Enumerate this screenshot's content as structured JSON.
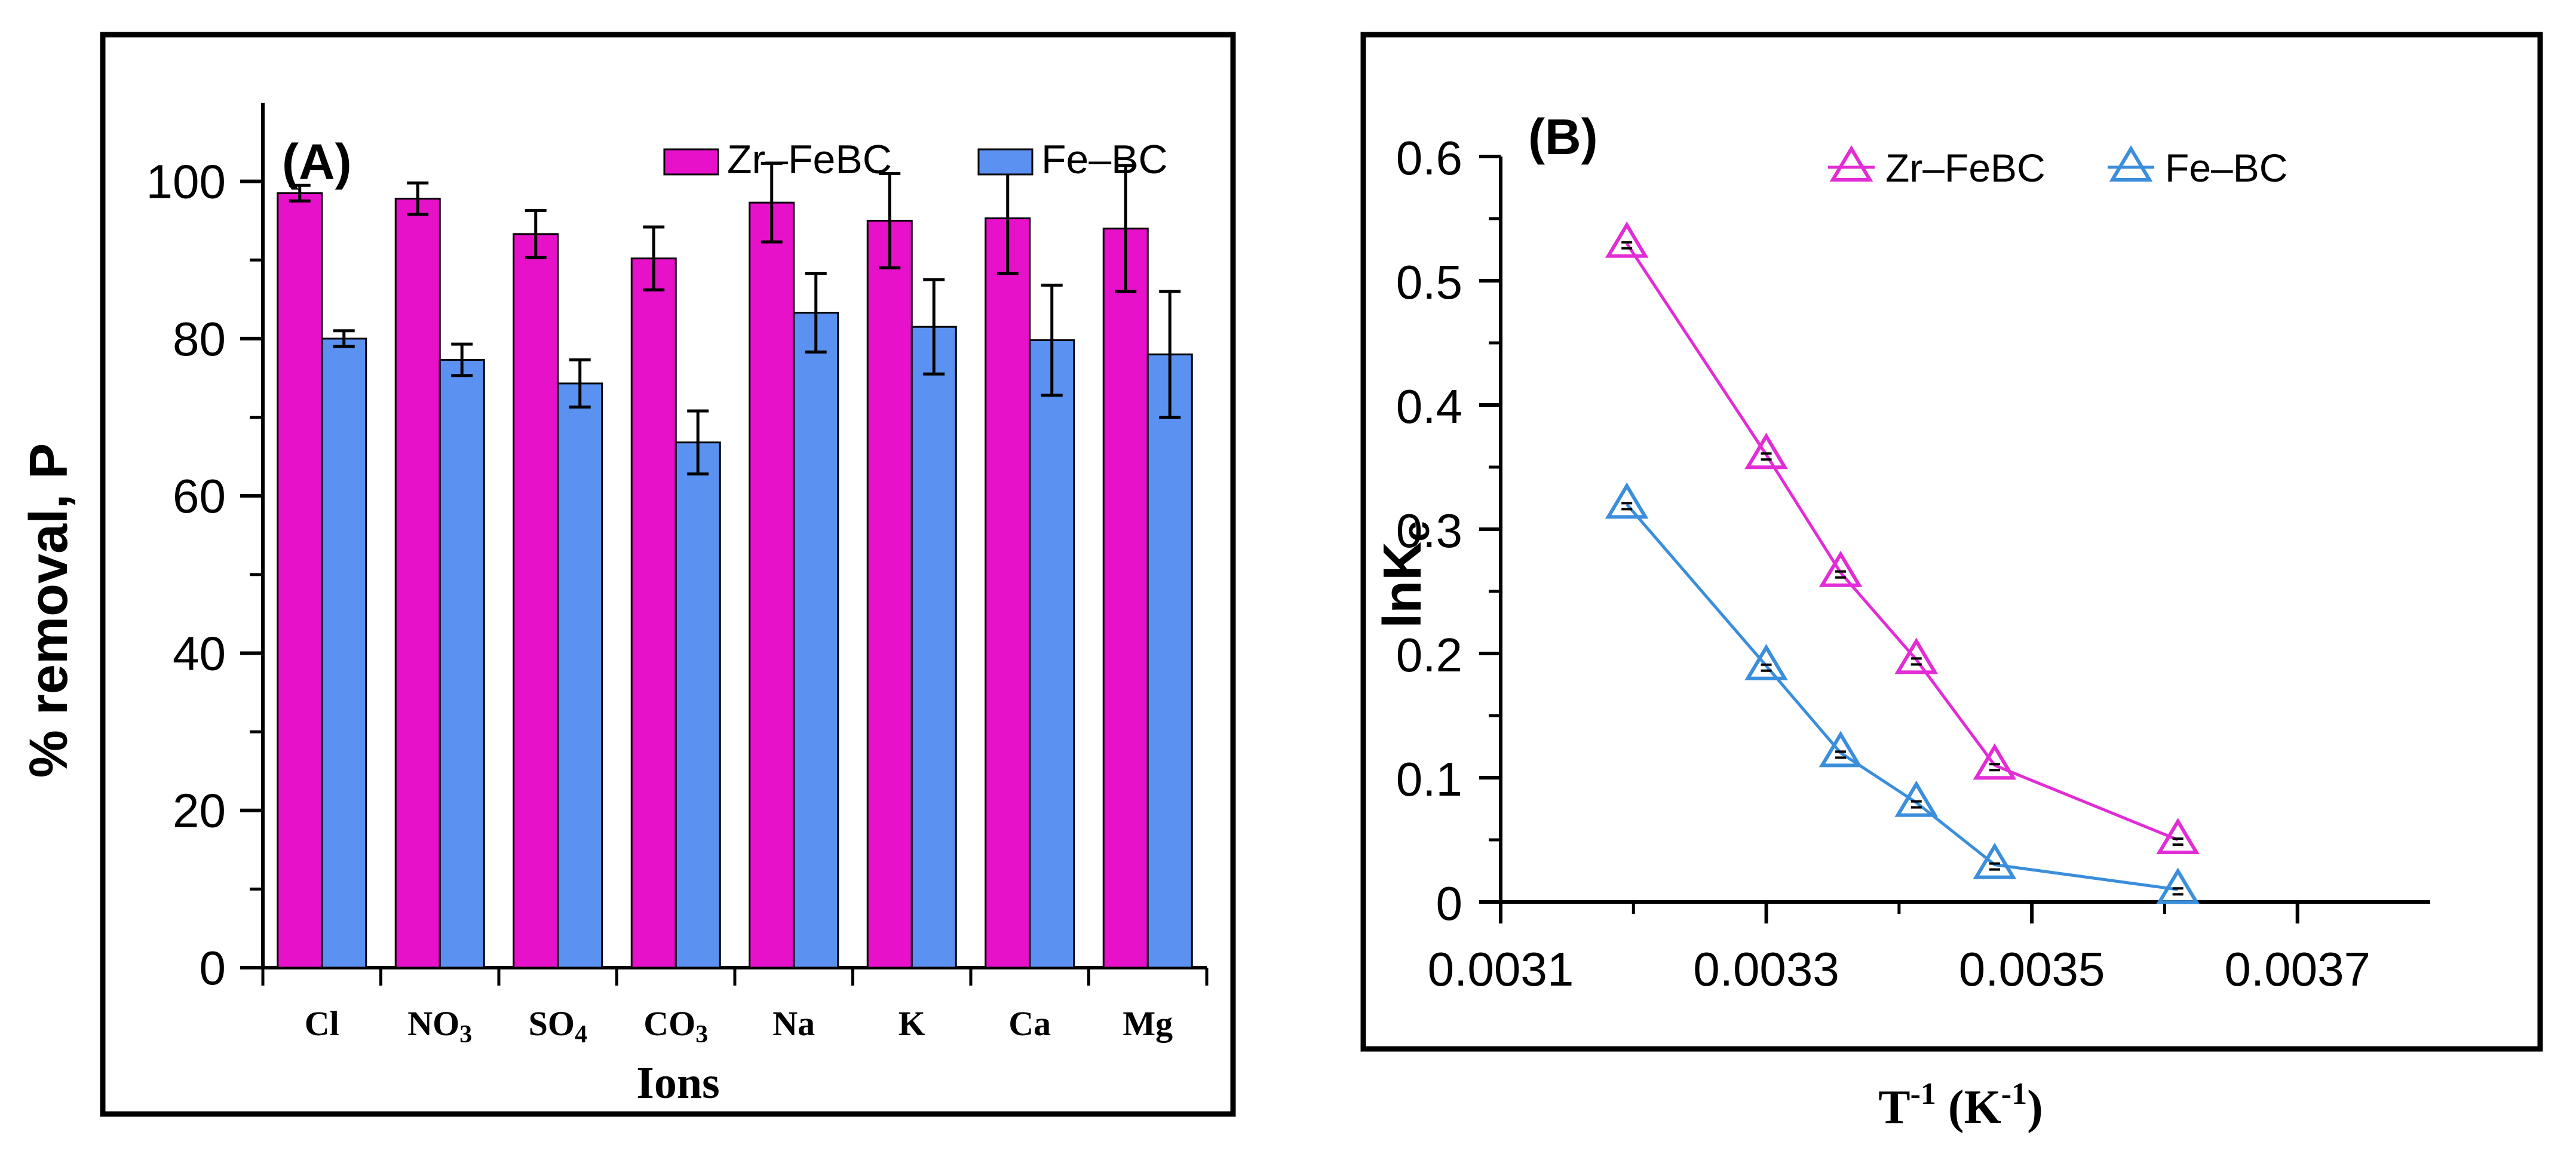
{
  "colors": {
    "zr": "#E611C8",
    "fe": "#5B91F0",
    "line_zr": "#E22CD5",
    "line_fe": "#3A8EDB",
    "frame": "#000000"
  },
  "chart_data": [
    {
      "type": "bar",
      "panel_label": "(A)",
      "categories": [
        "Cl",
        "NO3",
        "SO4",
        "CO3",
        "Na",
        "K",
        "Ca",
        "Mg"
      ],
      "category_labels": [
        {
          "base": "Cl",
          "sub": ""
        },
        {
          "base": "NO",
          "sub": "3"
        },
        {
          "base": "SO",
          "sub": "4"
        },
        {
          "base": "CO",
          "sub": "3"
        },
        {
          "base": "Na",
          "sub": ""
        },
        {
          "base": "K",
          "sub": ""
        },
        {
          "base": "Ca",
          "sub": ""
        },
        {
          "base": "Mg",
          "sub": ""
        }
      ],
      "series": [
        {
          "name": "Zr–FeBC",
          "color": "#E611C8",
          "values": [
            98.5,
            97.8,
            93.3,
            90.2,
            97.3,
            95.0,
            95.3,
            94.0
          ],
          "errors": [
            1.0,
            2.0,
            3.0,
            4.0,
            5.0,
            6.0,
            7.0,
            8.0
          ]
        },
        {
          "name": "Fe–BC",
          "color": "#5B91F0",
          "values": [
            80.0,
            77.3,
            74.3,
            66.8,
            83.3,
            81.5,
            79.8,
            78.0
          ],
          "errors": [
            1.0,
            2.0,
            3.0,
            4.0,
            5.0,
            6.0,
            7.0,
            8.0
          ]
        }
      ],
      "xlabel": "Ions",
      "ylabel": "% removal, P",
      "ylim": [
        0,
        110
      ],
      "yticks": [
        0,
        20,
        40,
        60,
        80,
        100
      ],
      "legend_position": "top-right",
      "grid": false
    },
    {
      "type": "line",
      "panel_label": "(B)",
      "series": [
        {
          "name": "Zr–FeBC",
          "color": "#E22CD5",
          "marker": "open-triangle",
          "x": [
            0.003195,
            0.0033,
            0.003356,
            0.003413,
            0.003472,
            0.00361
          ],
          "y": [
            0.53,
            0.36,
            0.265,
            0.195,
            0.11,
            0.05
          ]
        },
        {
          "name": "Fe–BC",
          "color": "#3A8EDB",
          "marker": "open-triangle",
          "x": [
            0.003195,
            0.0033,
            0.003356,
            0.003413,
            0.003472,
            0.00361
          ],
          "y": [
            0.32,
            0.19,
            0.12,
            0.08,
            0.03,
            0.01
          ]
        }
      ],
      "xlabel": {
        "base": "T",
        "sup1": "-1",
        "mid": " (K",
        "sup2": "-1",
        "end": ")"
      },
      "ylabel": {
        "base": "lnK",
        "sub": "c"
      },
      "xlim": [
        0.0031,
        0.0038
      ],
      "ylim": [
        0,
        0.6
      ],
      "xticks": [
        "0.0031",
        "0.0033",
        "0.0035",
        "0.0037"
      ],
      "yticks": [
        "0",
        "0.1",
        "0.2",
        "0.3",
        "0.4",
        "0.5",
        "0.6"
      ],
      "legend_position": "top-right",
      "grid": false
    }
  ]
}
